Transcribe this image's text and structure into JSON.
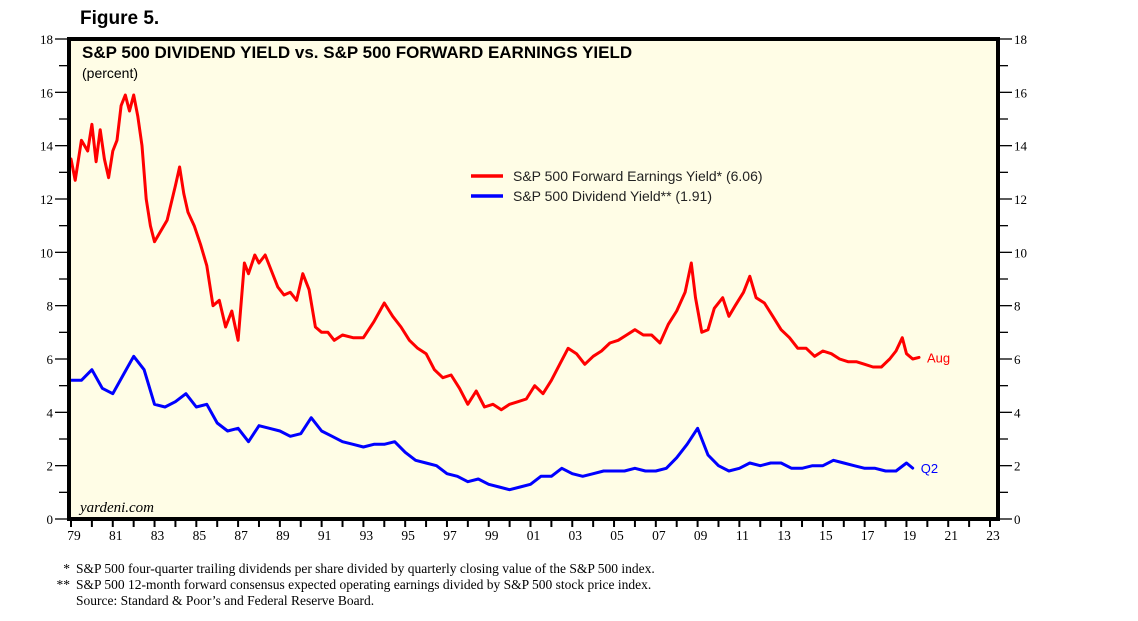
{
  "figure_label": "Figure 5.",
  "chart_data": {
    "type": "line",
    "title": "S&P 500 DIVIDEND YIELD vs. S&P 500 FORWARD EARNINGS YIELD",
    "subtitle": "(percent)",
    "xlabel": "",
    "ylabel": "percent",
    "xlim": [
      1979,
      2023.5
    ],
    "ylim": [
      0,
      18
    ],
    "y_ticks": [
      0,
      2,
      4,
      6,
      8,
      10,
      12,
      14,
      16,
      18
    ],
    "x_tick_labels": [
      "79",
      "81",
      "83",
      "85",
      "87",
      "89",
      "91",
      "93",
      "95",
      "97",
      "99",
      "01",
      "03",
      "05",
      "07",
      "09",
      "11",
      "13",
      "15",
      "17",
      "19",
      "21",
      "23"
    ],
    "x_tick_years": [
      1979,
      1981,
      1983,
      1985,
      1987,
      1989,
      1991,
      1993,
      1995,
      1997,
      1999,
      2001,
      2003,
      2005,
      2007,
      2009,
      2011,
      2013,
      2015,
      2017,
      2019,
      2021,
      2023
    ],
    "grid": false,
    "background": "#fffde6",
    "watermark": "yardeni.com",
    "legend_position": "center-right",
    "series": [
      {
        "name": "S&P 500 Forward Earnings Yield* (6.06)",
        "color": "#ff0000",
        "end_label": "Aug",
        "x": [
          1979.0,
          1979.2,
          1979.5,
          1979.8,
          1980.0,
          1980.2,
          1980.4,
          1980.6,
          1980.8,
          1981.0,
          1981.2,
          1981.4,
          1981.6,
          1981.8,
          1982.0,
          1982.2,
          1982.4,
          1982.6,
          1982.8,
          1983.0,
          1983.3,
          1983.6,
          1984.0,
          1984.2,
          1984.4,
          1984.6,
          1984.9,
          1985.2,
          1985.5,
          1985.8,
          1986.1,
          1986.4,
          1986.7,
          1987.0,
          1987.3,
          1987.5,
          1987.8,
          1988.0,
          1988.3,
          1988.6,
          1988.9,
          1989.2,
          1989.5,
          1989.8,
          1990.1,
          1990.4,
          1990.7,
          1991.0,
          1991.3,
          1991.6,
          1992.0,
          1992.5,
          1993.0,
          1993.5,
          1994.0,
          1994.4,
          1994.8,
          1995.2,
          1995.6,
          1996.0,
          1996.4,
          1996.8,
          1997.2,
          1997.6,
          1998.0,
          1998.4,
          1998.8,
          1999.2,
          1999.6,
          2000.0,
          2000.4,
          2000.8,
          2001.2,
          2001.6,
          2002.0,
          2002.4,
          2002.8,
          2003.2,
          2003.6,
          2004.0,
          2004.4,
          2004.8,
          2005.2,
          2005.6,
          2006.0,
          2006.4,
          2006.8,
          2007.2,
          2007.6,
          2008.0,
          2008.4,
          2008.7,
          2008.9,
          2009.2,
          2009.5,
          2009.8,
          2010.2,
          2010.5,
          2010.8,
          2011.2,
          2011.5,
          2011.8,
          2012.2,
          2012.6,
          2013.0,
          2013.4,
          2013.8,
          2014.2,
          2014.6,
          2015.0,
          2015.4,
          2015.8,
          2016.2,
          2016.6,
          2017.0,
          2017.4,
          2017.8,
          2018.2,
          2018.5,
          2018.8,
          2019.0,
          2019.3,
          2019.6
        ],
        "y": [
          13.5,
          12.7,
          14.2,
          13.8,
          14.8,
          13.4,
          14.6,
          13.5,
          12.8,
          13.8,
          14.2,
          15.5,
          15.9,
          15.3,
          15.9,
          15.1,
          14.0,
          12.0,
          11.0,
          10.4,
          10.8,
          11.2,
          12.5,
          13.2,
          12.2,
          11.5,
          11.0,
          10.3,
          9.5,
          8.0,
          8.2,
          7.2,
          7.8,
          6.7,
          9.6,
          9.2,
          9.9,
          9.6,
          9.9,
          9.3,
          8.7,
          8.4,
          8.5,
          8.2,
          9.2,
          8.6,
          7.2,
          7.0,
          7.0,
          6.7,
          6.9,
          6.8,
          6.8,
          7.4,
          8.1,
          7.6,
          7.2,
          6.7,
          6.4,
          6.2,
          5.6,
          5.3,
          5.4,
          4.9,
          4.3,
          4.8,
          4.2,
          4.3,
          4.1,
          4.3,
          4.4,
          4.5,
          5.0,
          4.7,
          5.2,
          5.8,
          6.4,
          6.2,
          5.8,
          6.1,
          6.3,
          6.6,
          6.7,
          6.9,
          7.1,
          6.9,
          6.9,
          6.6,
          7.3,
          7.8,
          8.5,
          9.6,
          8.3,
          7.0,
          7.1,
          7.9,
          8.3,
          7.6,
          8.0,
          8.5,
          9.1,
          8.3,
          8.1,
          7.6,
          7.1,
          6.8,
          6.4,
          6.4,
          6.1,
          6.3,
          6.2,
          6.0,
          5.9,
          5.9,
          5.8,
          5.7,
          5.7,
          6.0,
          6.3,
          6.8,
          6.2,
          6.0,
          6.06
        ]
      },
      {
        "name": "S&P 500 Dividend Yield** (1.91)",
        "color": "#0000ff",
        "end_label": "Q2",
        "x": [
          1979.0,
          1979.5,
          1980.0,
          1980.5,
          1981.0,
          1981.5,
          1982.0,
          1982.5,
          1983.0,
          1983.5,
          1984.0,
          1984.5,
          1985.0,
          1985.5,
          1986.0,
          1986.5,
          1987.0,
          1987.5,
          1988.0,
          1988.5,
          1989.0,
          1989.5,
          1990.0,
          1990.5,
          1991.0,
          1991.5,
          1992.0,
          1992.5,
          1993.0,
          1993.5,
          1994.0,
          1994.5,
          1995.0,
          1995.5,
          1996.0,
          1996.5,
          1997.0,
          1997.5,
          1998.0,
          1998.5,
          1999.0,
          1999.5,
          2000.0,
          2000.5,
          2001.0,
          2001.5,
          2002.0,
          2002.5,
          2003.0,
          2003.5,
          2004.0,
          2004.5,
          2005.0,
          2005.5,
          2006.0,
          2006.5,
          2007.0,
          2007.5,
          2008.0,
          2008.5,
          2009.0,
          2009.5,
          2010.0,
          2010.5,
          2011.0,
          2011.5,
          2012.0,
          2012.5,
          2013.0,
          2013.5,
          2014.0,
          2014.5,
          2015.0,
          2015.5,
          2016.0,
          2016.5,
          2017.0,
          2017.5,
          2018.0,
          2018.5,
          2019.0,
          2019.3
        ],
        "y": [
          5.2,
          5.2,
          5.6,
          4.9,
          4.7,
          5.4,
          6.1,
          5.6,
          4.3,
          4.2,
          4.4,
          4.7,
          4.2,
          4.3,
          3.6,
          3.3,
          3.4,
          2.9,
          3.5,
          3.4,
          3.3,
          3.1,
          3.2,
          3.8,
          3.3,
          3.1,
          2.9,
          2.8,
          2.7,
          2.8,
          2.8,
          2.9,
          2.5,
          2.2,
          2.1,
          2.0,
          1.7,
          1.6,
          1.4,
          1.5,
          1.3,
          1.2,
          1.1,
          1.2,
          1.3,
          1.6,
          1.6,
          1.9,
          1.7,
          1.6,
          1.7,
          1.8,
          1.8,
          1.8,
          1.9,
          1.8,
          1.8,
          1.9,
          2.3,
          2.8,
          3.4,
          2.4,
          2.0,
          1.8,
          1.9,
          2.1,
          2.0,
          2.1,
          2.1,
          1.9,
          1.9,
          2.0,
          2.0,
          2.2,
          2.1,
          2.0,
          1.9,
          1.9,
          1.8,
          1.8,
          2.1,
          1.91
        ]
      }
    ]
  },
  "footnotes": [
    {
      "mark": "*",
      "text": "S&P 500 four-quarter trailing dividends per share divided by quarterly closing value of the S&P 500 index."
    },
    {
      "mark": "**",
      "text": "S&P 500 12-month forward consensus expected operating earnings divided by S&P 500 stock price index."
    },
    {
      "mark": "",
      "text": "Source: Standard & Poor’s and Federal Reserve Board."
    }
  ]
}
